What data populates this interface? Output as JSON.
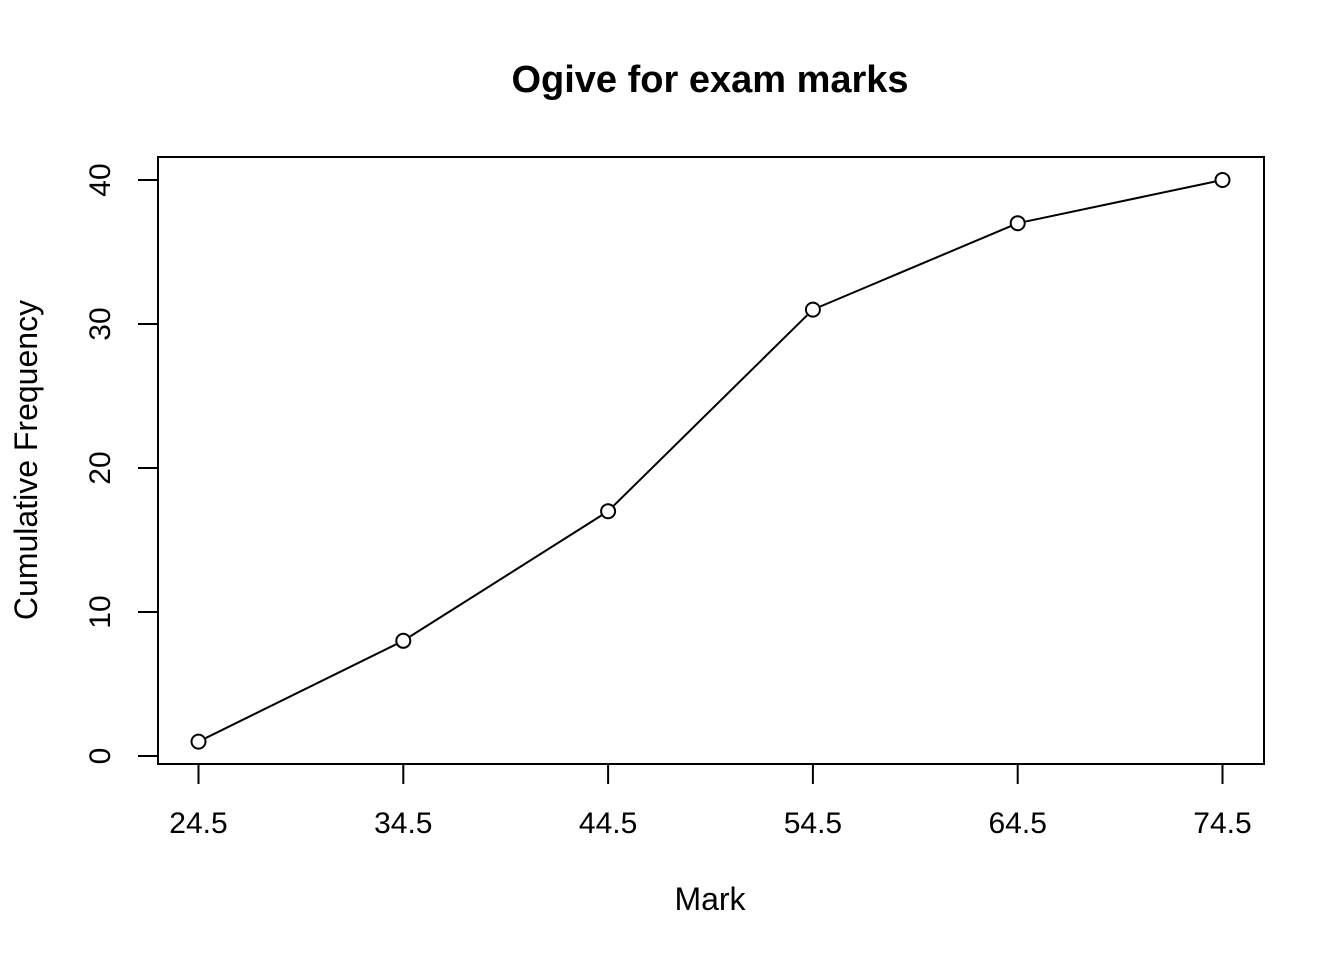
{
  "chart_data": {
    "type": "line",
    "title": "Ogive for exam marks",
    "xlabel": "Mark",
    "ylabel": "Cumulative Frequency",
    "x": [
      24.5,
      34.5,
      44.5,
      54.5,
      64.5,
      74.5
    ],
    "series": [
      {
        "values": [
          1,
          8,
          17,
          31,
          37,
          40
        ]
      }
    ],
    "xticks": [
      "24.5",
      "34.5",
      "44.5",
      "54.5",
      "64.5",
      "74.5"
    ],
    "yticks": [
      "0",
      "10",
      "20",
      "30",
      "40"
    ],
    "xlim": [
      24.5,
      74.5
    ],
    "ylim": [
      0,
      40
    ],
    "markers": "open-circle",
    "grid": false,
    "colors": {
      "line": "#000000",
      "background": "#ffffff"
    }
  }
}
